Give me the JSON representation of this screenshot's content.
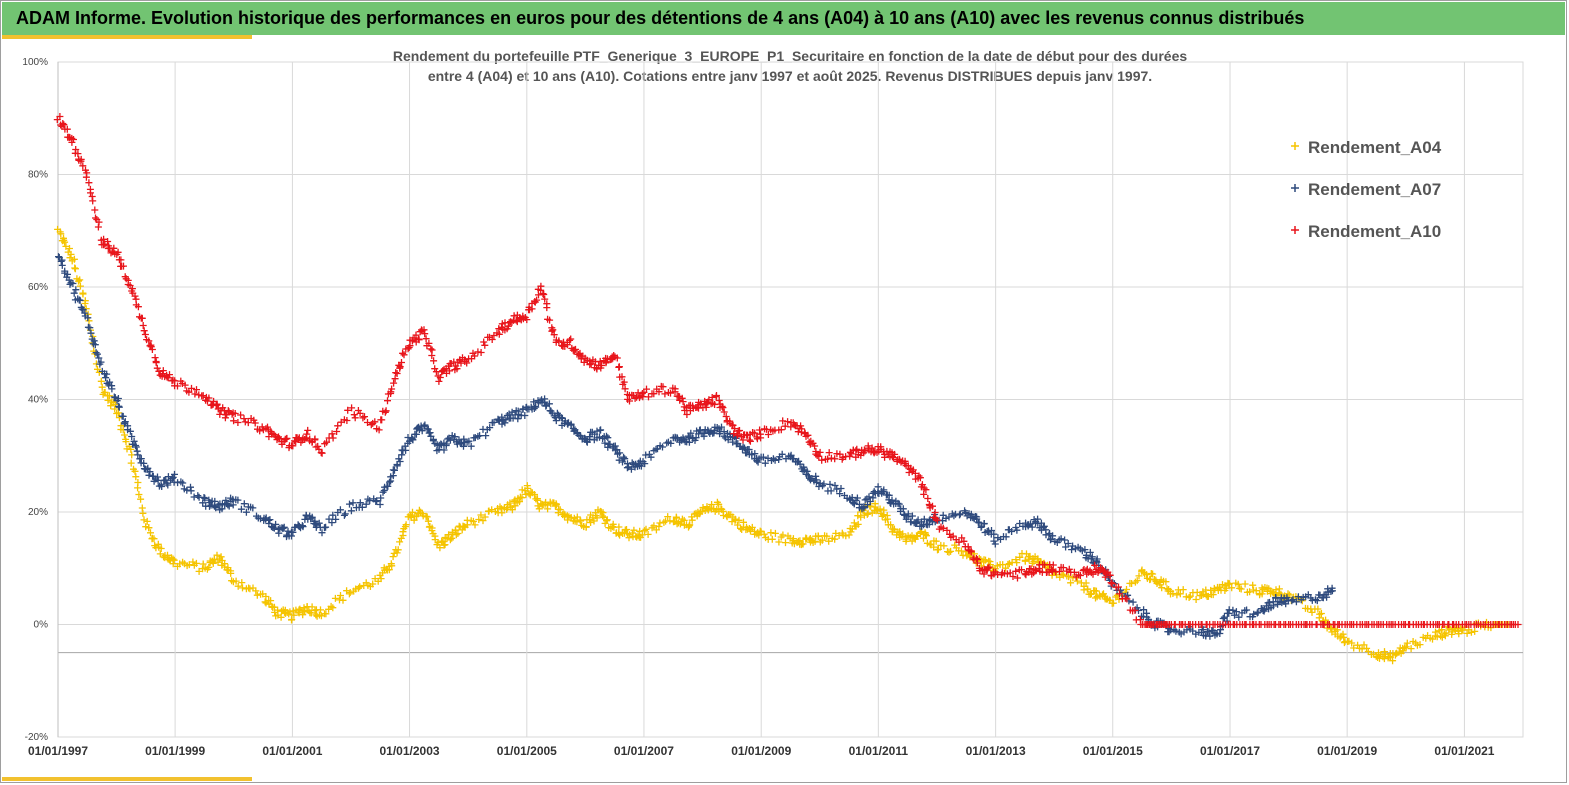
{
  "header": {
    "title": "ADAM Informe. Evolution historique des performances en euros pour des détentions de 4 ans (A04) à 10 ans (A10) avec les revenus connus distribués"
  },
  "colors": {
    "banner": "#72c472",
    "accent": "#f2c12e",
    "A04": "#f5c400",
    "A07": "#2e4a7d",
    "A10": "#e8151b",
    "grid": "#d9d9d9"
  },
  "chart_data": {
    "type": "scatter",
    "title_line1": "Rendement du portefeuille PTF_Generique_3_EUROPE_P1_Securitaire  en fonction de la date de début pour des durées",
    "title_line2": "entre 4 (A04) et 10 ans (A10). Cotations  entre janv 1997 et août 2025. Revenus DISTRIBUES depuis janv 1997.",
    "marker": "+",
    "xlabel": "",
    "ylabel": "",
    "x_range": [
      "1997-01-01",
      "2022-01-01"
    ],
    "ylim": [
      -20,
      100
    ],
    "grid": true,
    "legend_position": "right",
    "y_ticks": [
      "100%",
      "80%",
      "60%",
      "40%",
      "20%",
      "0%",
      "-20%"
    ],
    "x_ticks": [
      "01/01/1997",
      "01/01/1999",
      "01/01/2001",
      "01/01/2003",
      "01/01/2005",
      "01/01/2007",
      "01/01/2009",
      "01/01/2011",
      "01/01/2013",
      "01/01/2015",
      "01/01/2017",
      "01/01/2019",
      "01/01/2021"
    ],
    "series": [
      {
        "name": "Rendement_A04",
        "color": "#f5c400",
        "points": [
          [
            "1997-01",
            70
          ],
          [
            "1997-04",
            65
          ],
          [
            "1997-07",
            56
          ],
          [
            "1997-10",
            42
          ],
          [
            "1998-01",
            38
          ],
          [
            "1998-04",
            30
          ],
          [
            "1998-07",
            18
          ],
          [
            "1998-10",
            13
          ],
          [
            "1999-01",
            11
          ],
          [
            "1999-07",
            10
          ],
          [
            "1999-10",
            12
          ],
          [
            "2000-01",
            8
          ],
          [
            "2000-07",
            5
          ],
          [
            "2000-10",
            2
          ],
          [
            "2001-01",
            1.5
          ],
          [
            "2001-04",
            3
          ],
          [
            "2001-07",
            2
          ],
          [
            "2002-01",
            6
          ],
          [
            "2002-07",
            8
          ],
          [
            "2002-10",
            12
          ],
          [
            "2003-01",
            19
          ],
          [
            "2003-04",
            20
          ],
          [
            "2003-07",
            14
          ],
          [
            "2003-10",
            16
          ],
          [
            "2004-01",
            18
          ],
          [
            "2004-07",
            20
          ],
          [
            "2004-10",
            21
          ],
          [
            "2005-01",
            24
          ],
          [
            "2005-04",
            21
          ],
          [
            "2005-07",
            21
          ],
          [
            "2005-10",
            19
          ],
          [
            "2006-01",
            18
          ],
          [
            "2006-04",
            20
          ],
          [
            "2006-07",
            17
          ],
          [
            "2006-10",
            16
          ],
          [
            "2007-01",
            16
          ],
          [
            "2007-07",
            19
          ],
          [
            "2007-10",
            18
          ],
          [
            "2008-01",
            20
          ],
          [
            "2008-04",
            21
          ],
          [
            "2008-07",
            19
          ],
          [
            "2008-10",
            17
          ],
          [
            "2009-01",
            16
          ],
          [
            "2009-07",
            15
          ],
          [
            "2009-10",
            15
          ],
          [
            "2010-01",
            15
          ],
          [
            "2010-07",
            16
          ],
          [
            "2010-10",
            20
          ],
          [
            "2011-01",
            21
          ],
          [
            "2011-04",
            17
          ],
          [
            "2011-07",
            15
          ],
          [
            "2011-10",
            16
          ],
          [
            "2012-01",
            14
          ],
          [
            "2012-07",
            13
          ],
          [
            "2012-10",
            11
          ],
          [
            "2013-01",
            10
          ],
          [
            "2013-07",
            12
          ],
          [
            "2013-10",
            11
          ],
          [
            "2014-01",
            9
          ],
          [
            "2014-07",
            7
          ],
          [
            "2014-10",
            5
          ],
          [
            "2015-01",
            4
          ],
          [
            "2015-07",
            9
          ],
          [
            "2015-10",
            8
          ],
          [
            "2016-01",
            6
          ],
          [
            "2016-07",
            5
          ],
          [
            "2016-10",
            6
          ],
          [
            "2017-01",
            7
          ],
          [
            "2017-07",
            6
          ],
          [
            "2017-10",
            6
          ],
          [
            "2018-01",
            5
          ],
          [
            "2018-07",
            2
          ],
          [
            "2018-10",
            -1
          ],
          [
            "2019-01",
            -3
          ],
          [
            "2019-07",
            -5
          ],
          [
            "2019-10",
            -6
          ],
          [
            "2020-01",
            -4
          ],
          [
            "2020-07",
            -2
          ],
          [
            "2020-10",
            -1
          ],
          [
            "2021-01",
            -1
          ],
          [
            "2021-07",
            0
          ],
          [
            "2021-10",
            0
          ]
        ]
      },
      {
        "name": "Rendement_A07",
        "color": "#2e4a7d",
        "points": [
          [
            "1997-01",
            66
          ],
          [
            "1997-04",
            60
          ],
          [
            "1997-07",
            54
          ],
          [
            "1997-10",
            46
          ],
          [
            "1998-01",
            40
          ],
          [
            "1998-04",
            33
          ],
          [
            "1998-07",
            28
          ],
          [
            "1998-10",
            25
          ],
          [
            "1999-01",
            26
          ],
          [
            "1999-07",
            22
          ],
          [
            "1999-10",
            21
          ],
          [
            "2000-01",
            22
          ],
          [
            "2000-07",
            19
          ],
          [
            "2000-10",
            17
          ],
          [
            "2001-01",
            16
          ],
          [
            "2001-04",
            19
          ],
          [
            "2001-07",
            17
          ],
          [
            "2002-01",
            21
          ],
          [
            "2002-07",
            22
          ],
          [
            "2002-10",
            28
          ],
          [
            "2003-01",
            33
          ],
          [
            "2003-04",
            35
          ],
          [
            "2003-07",
            31
          ],
          [
            "2003-10",
            33
          ],
          [
            "2004-01",
            32
          ],
          [
            "2004-07",
            36
          ],
          [
            "2004-10",
            37
          ],
          [
            "2005-01",
            38
          ],
          [
            "2005-04",
            40
          ],
          [
            "2005-07",
            37
          ],
          [
            "2005-10",
            35
          ],
          [
            "2006-01",
            33
          ],
          [
            "2006-04",
            34
          ],
          [
            "2006-07",
            31
          ],
          [
            "2006-10",
            28
          ],
          [
            "2007-01",
            29
          ],
          [
            "2007-07",
            33
          ],
          [
            "2007-10",
            33
          ],
          [
            "2008-01",
            34
          ],
          [
            "2008-04",
            35
          ],
          [
            "2008-07",
            33
          ],
          [
            "2008-10",
            31
          ],
          [
            "2009-01",
            29
          ],
          [
            "2009-07",
            30
          ],
          [
            "2009-10",
            27
          ],
          [
            "2010-01",
            25
          ],
          [
            "2010-07",
            23
          ],
          [
            "2010-10",
            21
          ],
          [
            "2011-01",
            24
          ],
          [
            "2011-04",
            22
          ],
          [
            "2011-07",
            19
          ],
          [
            "2011-10",
            18
          ],
          [
            "2012-01",
            19
          ],
          [
            "2012-07",
            20
          ],
          [
            "2012-10",
            18
          ],
          [
            "2013-01",
            15
          ],
          [
            "2013-07",
            18
          ],
          [
            "2013-10",
            18
          ],
          [
            "2014-01",
            15
          ],
          [
            "2014-07",
            13
          ],
          [
            "2014-10",
            11
          ],
          [
            "2015-01",
            7
          ],
          [
            "2015-07",
            2
          ],
          [
            "2015-10",
            0
          ],
          [
            "2016-01",
            -1
          ],
          [
            "2016-07",
            -1
          ],
          [
            "2016-10",
            -2
          ],
          [
            "2017-01",
            2
          ],
          [
            "2017-07",
            2
          ],
          [
            "2017-10",
            4
          ],
          [
            "2018-01",
            4
          ],
          [
            "2018-07",
            5
          ],
          [
            "2018-10",
            6
          ]
        ]
      },
      {
        "name": "Rendement_A10",
        "color": "#e8151b",
        "points": [
          [
            "1997-01",
            90
          ],
          [
            "1997-04",
            86
          ],
          [
            "1997-07",
            80
          ],
          [
            "1997-10",
            68
          ],
          [
            "1998-01",
            66
          ],
          [
            "1998-04",
            60
          ],
          [
            "1998-07",
            52
          ],
          [
            "1998-10",
            45
          ],
          [
            "1999-01",
            43
          ],
          [
            "1999-07",
            41
          ],
          [
            "1999-10",
            38
          ],
          [
            "2000-01",
            37
          ],
          [
            "2000-07",
            35
          ],
          [
            "2000-10",
            33
          ],
          [
            "2001-01",
            32
          ],
          [
            "2001-04",
            34
          ],
          [
            "2001-07",
            31
          ],
          [
            "2002-01",
            38
          ],
          [
            "2002-07",
            35
          ],
          [
            "2002-10",
            44
          ],
          [
            "2003-01",
            50
          ],
          [
            "2003-04",
            52
          ],
          [
            "2003-07",
            44
          ],
          [
            "2003-10",
            46
          ],
          [
            "2004-01",
            47
          ],
          [
            "2004-07",
            52
          ],
          [
            "2004-10",
            54
          ],
          [
            "2005-01",
            55
          ],
          [
            "2005-04",
            60
          ],
          [
            "2005-07",
            50
          ],
          [
            "2005-10",
            50
          ],
          [
            "2006-01",
            47
          ],
          [
            "2006-04",
            46
          ],
          [
            "2006-07",
            48
          ],
          [
            "2006-10",
            40
          ],
          [
            "2007-01",
            41
          ],
          [
            "2007-07",
            42
          ],
          [
            "2007-10",
            38
          ],
          [
            "2008-01",
            39
          ],
          [
            "2008-04",
            40
          ],
          [
            "2008-07",
            35
          ],
          [
            "2008-10",
            33
          ],
          [
            "2009-01",
            34
          ],
          [
            "2009-07",
            36
          ],
          [
            "2009-10",
            34
          ],
          [
            "2010-01",
            30
          ],
          [
            "2010-07",
            30
          ],
          [
            "2010-10",
            31
          ],
          [
            "2011-01",
            31
          ],
          [
            "2011-04",
            30
          ],
          [
            "2011-07",
            28
          ],
          [
            "2011-10",
            25
          ],
          [
            "2012-01",
            18
          ],
          [
            "2012-07",
            14
          ],
          [
            "2012-10",
            10
          ],
          [
            "2013-01",
            9
          ],
          [
            "2013-07",
            9
          ],
          [
            "2013-10",
            10
          ],
          [
            "2014-01",
            10
          ],
          [
            "2014-07",
            9
          ],
          [
            "2014-10",
            10
          ],
          [
            "2015-01",
            8
          ],
          [
            "2015-07",
            0
          ],
          [
            "2015-10",
            0
          ],
          [
            "2016-01",
            0
          ],
          [
            "2016-07",
            0
          ],
          [
            "2017-01",
            0
          ],
          [
            "2017-07",
            0
          ],
          [
            "2018-01",
            0
          ],
          [
            "2018-07",
            0
          ],
          [
            "2019-01",
            0
          ],
          [
            "2019-07",
            0
          ],
          [
            "2020-01",
            0
          ],
          [
            "2020-07",
            0
          ],
          [
            "2021-01",
            0
          ],
          [
            "2021-07",
            0
          ],
          [
            "2021-12",
            0
          ]
        ]
      }
    ]
  }
}
